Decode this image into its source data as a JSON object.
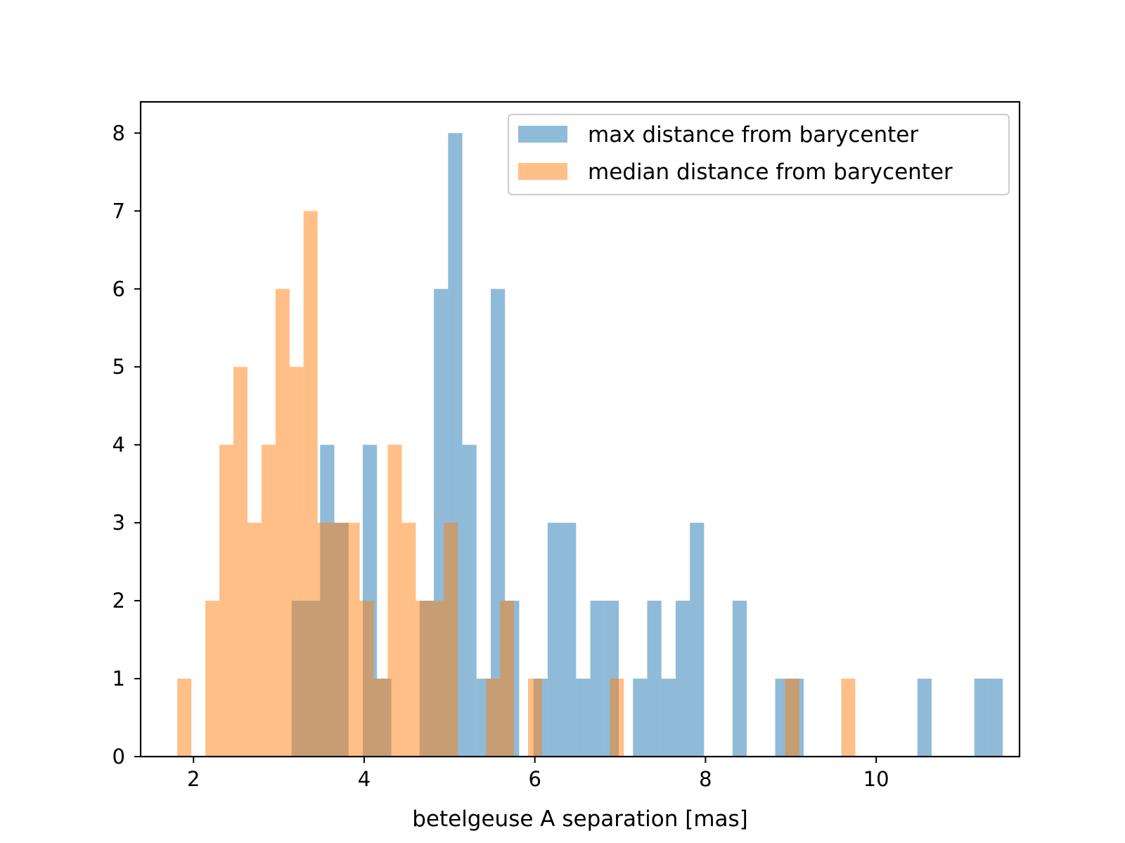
{
  "chart_data": {
    "type": "bar",
    "subtype": "overlaid-histogram",
    "title": "",
    "xlabel": "betelgeuse A separation [mas]",
    "ylabel": "",
    "xlim": [
      1.38,
      11.68
    ],
    "ylim": [
      0,
      8.4
    ],
    "xticks": [
      2,
      4,
      6,
      8,
      10
    ],
    "xtick_labels": [
      "2",
      "4",
      "6",
      "8",
      "10"
    ],
    "yticks": [
      0,
      1,
      2,
      3,
      4,
      5,
      6,
      7,
      8
    ],
    "ytick_labels": [
      "0",
      "1",
      "2",
      "3",
      "4",
      "5",
      "6",
      "7",
      "8"
    ],
    "grid": false,
    "legend": {
      "position": "top-right",
      "entries": [
        "max distance from barycenter",
        "median distance from barycenter"
      ]
    },
    "series": [
      {
        "name": "max distance from barycenter",
        "color": "#1f77b4",
        "alpha": 0.5,
        "bin_width": 0.1667,
        "bins": [
          {
            "x0": 3.15,
            "count": 2
          },
          {
            "x0": 3.3167,
            "count": 2
          },
          {
            "x0": 3.4833,
            "count": 4
          },
          {
            "x0": 3.65,
            "count": 3
          },
          {
            "x0": 3.8167,
            "count": 0
          },
          {
            "x0": 3.9833,
            "count": 4
          },
          {
            "x0": 4.15,
            "count": 1
          },
          {
            "x0": 4.3167,
            "count": 0
          },
          {
            "x0": 4.4833,
            "count": 0
          },
          {
            "x0": 4.65,
            "count": 2
          },
          {
            "x0": 4.8167,
            "count": 6
          },
          {
            "x0": 4.9833,
            "count": 8
          },
          {
            "x0": 5.15,
            "count": 4
          },
          {
            "x0": 5.3167,
            "count": 1
          },
          {
            "x0": 5.4833,
            "count": 6
          },
          {
            "x0": 5.65,
            "count": 2
          },
          {
            "x0": 5.8167,
            "count": 0
          },
          {
            "x0": 5.9833,
            "count": 1
          },
          {
            "x0": 6.15,
            "count": 3
          },
          {
            "x0": 6.3167,
            "count": 3
          },
          {
            "x0": 6.4833,
            "count": 1
          },
          {
            "x0": 6.65,
            "count": 2
          },
          {
            "x0": 6.8167,
            "count": 2
          },
          {
            "x0": 6.9833,
            "count": 0
          },
          {
            "x0": 7.15,
            "count": 1
          },
          {
            "x0": 7.3167,
            "count": 2
          },
          {
            "x0": 7.4833,
            "count": 1
          },
          {
            "x0": 7.65,
            "count": 2
          },
          {
            "x0": 7.8167,
            "count": 3
          },
          {
            "x0": 7.9833,
            "count": 0
          },
          {
            "x0": 8.15,
            "count": 0
          },
          {
            "x0": 8.3167,
            "count": 2
          },
          {
            "x0": 8.4833,
            "count": 0
          },
          {
            "x0": 8.65,
            "count": 0
          },
          {
            "x0": 8.8167,
            "count": 1
          },
          {
            "x0": 8.9833,
            "count": 1
          },
          {
            "x0": 9.15,
            "count": 0
          },
          {
            "x0": 10.4833,
            "count": 1
          },
          {
            "x0": 11.15,
            "count": 1
          },
          {
            "x0": 11.3167,
            "count": 1
          }
        ]
      },
      {
        "name": "median distance from barycenter",
        "color": "#ff7f0e",
        "alpha": 0.5,
        "bin_width": 0.1644,
        "bins": [
          {
            "x0": 1.81,
            "count": 1
          },
          {
            "x0": 1.9744,
            "count": 0
          },
          {
            "x0": 2.1388,
            "count": 2
          },
          {
            "x0": 2.3032,
            "count": 4
          },
          {
            "x0": 2.4676,
            "count": 5
          },
          {
            "x0": 2.632,
            "count": 3
          },
          {
            "x0": 2.7964,
            "count": 4
          },
          {
            "x0": 2.9608,
            "count": 6
          },
          {
            "x0": 3.1252,
            "count": 5
          },
          {
            "x0": 3.2896,
            "count": 7
          },
          {
            "x0": 3.454,
            "count": 3
          },
          {
            "x0": 3.6184,
            "count": 3
          },
          {
            "x0": 3.7828,
            "count": 3
          },
          {
            "x0": 3.9472,
            "count": 2
          },
          {
            "x0": 4.1116,
            "count": 1
          },
          {
            "x0": 4.276,
            "count": 4
          },
          {
            "x0": 4.4404,
            "count": 3
          },
          {
            "x0": 4.6048,
            "count": 2
          },
          {
            "x0": 4.7692,
            "count": 2
          },
          {
            "x0": 4.9336,
            "count": 3
          },
          {
            "x0": 5.098,
            "count": 0
          },
          {
            "x0": 5.2624,
            "count": 0
          },
          {
            "x0": 5.4268,
            "count": 1
          },
          {
            "x0": 5.5912,
            "count": 2
          },
          {
            "x0": 5.7556,
            "count": 0
          },
          {
            "x0": 5.92,
            "count": 1
          },
          {
            "x0": 6.8788,
            "count": 1
          },
          {
            "x0": 8.9333,
            "count": 1
          },
          {
            "x0": 9.5909,
            "count": 1
          }
        ]
      }
    ]
  }
}
